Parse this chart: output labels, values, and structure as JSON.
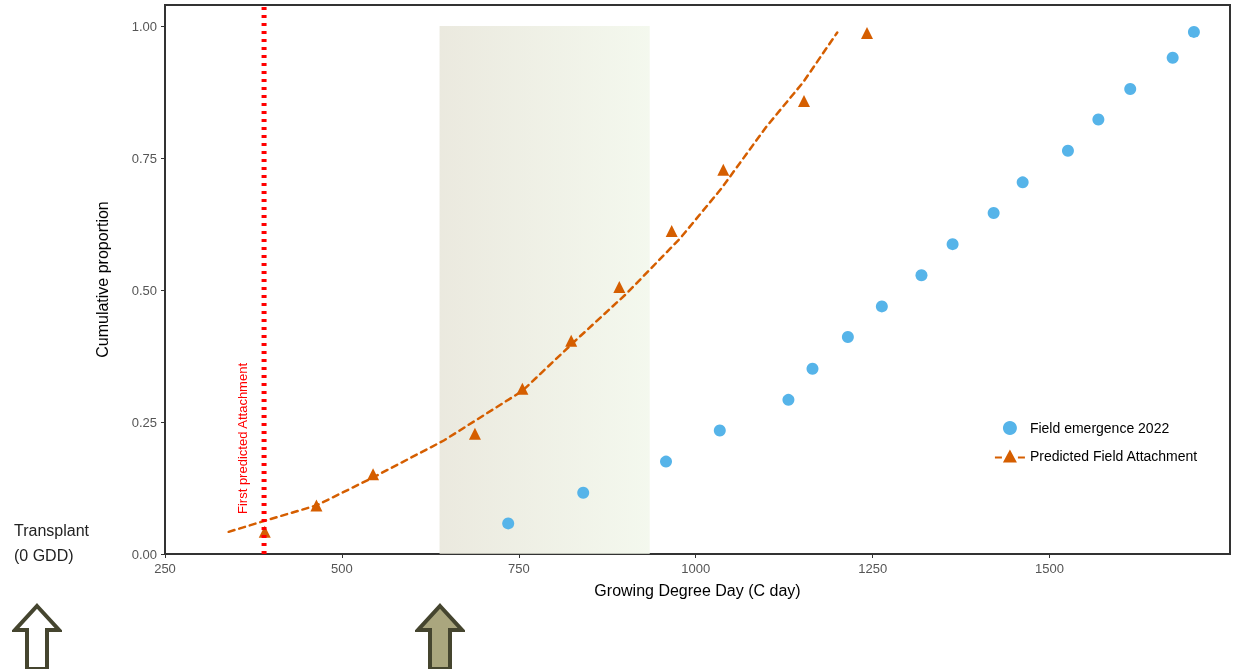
{
  "chart_data": {
    "type": "scatter",
    "xlabel": "Growing Degree Day (C day)",
    "ylabel": "Cumulative proportion",
    "xlim": [
      250,
      1755
    ],
    "xticks": [
      250,
      500,
      750,
      1000,
      1250,
      1500
    ],
    "ylim": [
      0,
      1.04
    ],
    "yticks": [
      {
        "value": 0,
        "label": "0.00"
      },
      {
        "value": 0.25,
        "label": "0.25"
      },
      {
        "value": 0.5,
        "label": "0.50"
      },
      {
        "value": 0.75,
        "label": "0.75"
      },
      {
        "value": 1,
        "label": "1.00"
      }
    ],
    "grid": false,
    "legend": "bottom right",
    "series": [
      {
        "name": "Field emergence 2022",
        "type": "scatter",
        "marker": "circle",
        "color": "#56b4e9",
        "x": [
          735,
          841,
          958,
          1034,
          1131,
          1165,
          1215,
          1263,
          1319,
          1363,
          1421,
          1462,
          1526,
          1569,
          1614,
          1674,
          1704
        ],
        "values": [
          0.058,
          0.116,
          0.175,
          0.234,
          0.292,
          0.351,
          0.411,
          0.469,
          0.528,
          0.587,
          0.646,
          0.704,
          0.764,
          0.823,
          0.881,
          0.94,
          0.989
        ]
      },
      {
        "name": "Predicted Field Attachment",
        "type": "scatter",
        "marker": "triangle",
        "color": "#d55e00",
        "x": [
          391,
          464,
          544,
          688,
          755,
          824,
          892,
          966,
          1039,
          1153,
          1242
        ],
        "values": [
          0.042,
          0.092,
          0.151,
          0.228,
          0.313,
          0.404,
          0.506,
          0.612,
          0.728,
          0.858,
          0.987
        ]
      },
      {
        "type": "line",
        "marker": "none",
        "line_style": "dashed",
        "color": "#d55e00",
        "x": [
          340,
          391,
          464,
          544,
          644,
          755,
          829,
          902,
          978,
          1036,
          1099,
          1152,
          1200
        ],
        "values": [
          0.042,
          0.063,
          0.092,
          0.145,
          0.215,
          0.309,
          0.403,
          0.493,
          0.598,
          0.692,
          0.808,
          0.894,
          0.988
        ]
      }
    ],
    "ref_lines": [
      {
        "axis": "x",
        "value": 390,
        "label": "First predicted Attachment",
        "color": "#ff0000",
        "line_style": "dotted"
      }
    ],
    "bands": [
      {
        "axis": "x",
        "from": 638,
        "to": 935,
        "color": "#e4e2d4"
      }
    ],
    "annotations": [
      "Transplant\n(0 GDD)"
    ]
  }
}
